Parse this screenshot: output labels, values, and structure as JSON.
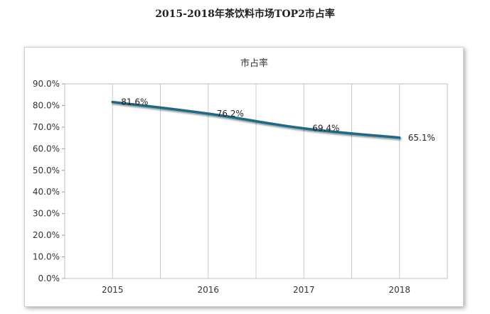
{
  "chart_data": {
    "type": "line",
    "title": "2015-2018年茶饮料市场TOP2市占率",
    "categories": [
      "2015",
      "2016",
      "2017",
      "2018"
    ],
    "series": [
      {
        "name": "市占率",
        "values": [
          81.6,
          76.2,
          69.4,
          65.1
        ],
        "color": "#1f6a85"
      }
    ],
    "data_labels": [
      "81.6%",
      "76.2%",
      "69.4%",
      "65.1%"
    ],
    "y_ticks": [
      "0.0%",
      "10.0%",
      "20.0%",
      "30.0%",
      "40.0%",
      "50.0%",
      "60.0%",
      "70.0%",
      "80.0%",
      "90.0%"
    ],
    "ylim": [
      0,
      90
    ],
    "xlabel": "",
    "ylabel": "",
    "legend_position": "top",
    "grid": "vertical"
  }
}
